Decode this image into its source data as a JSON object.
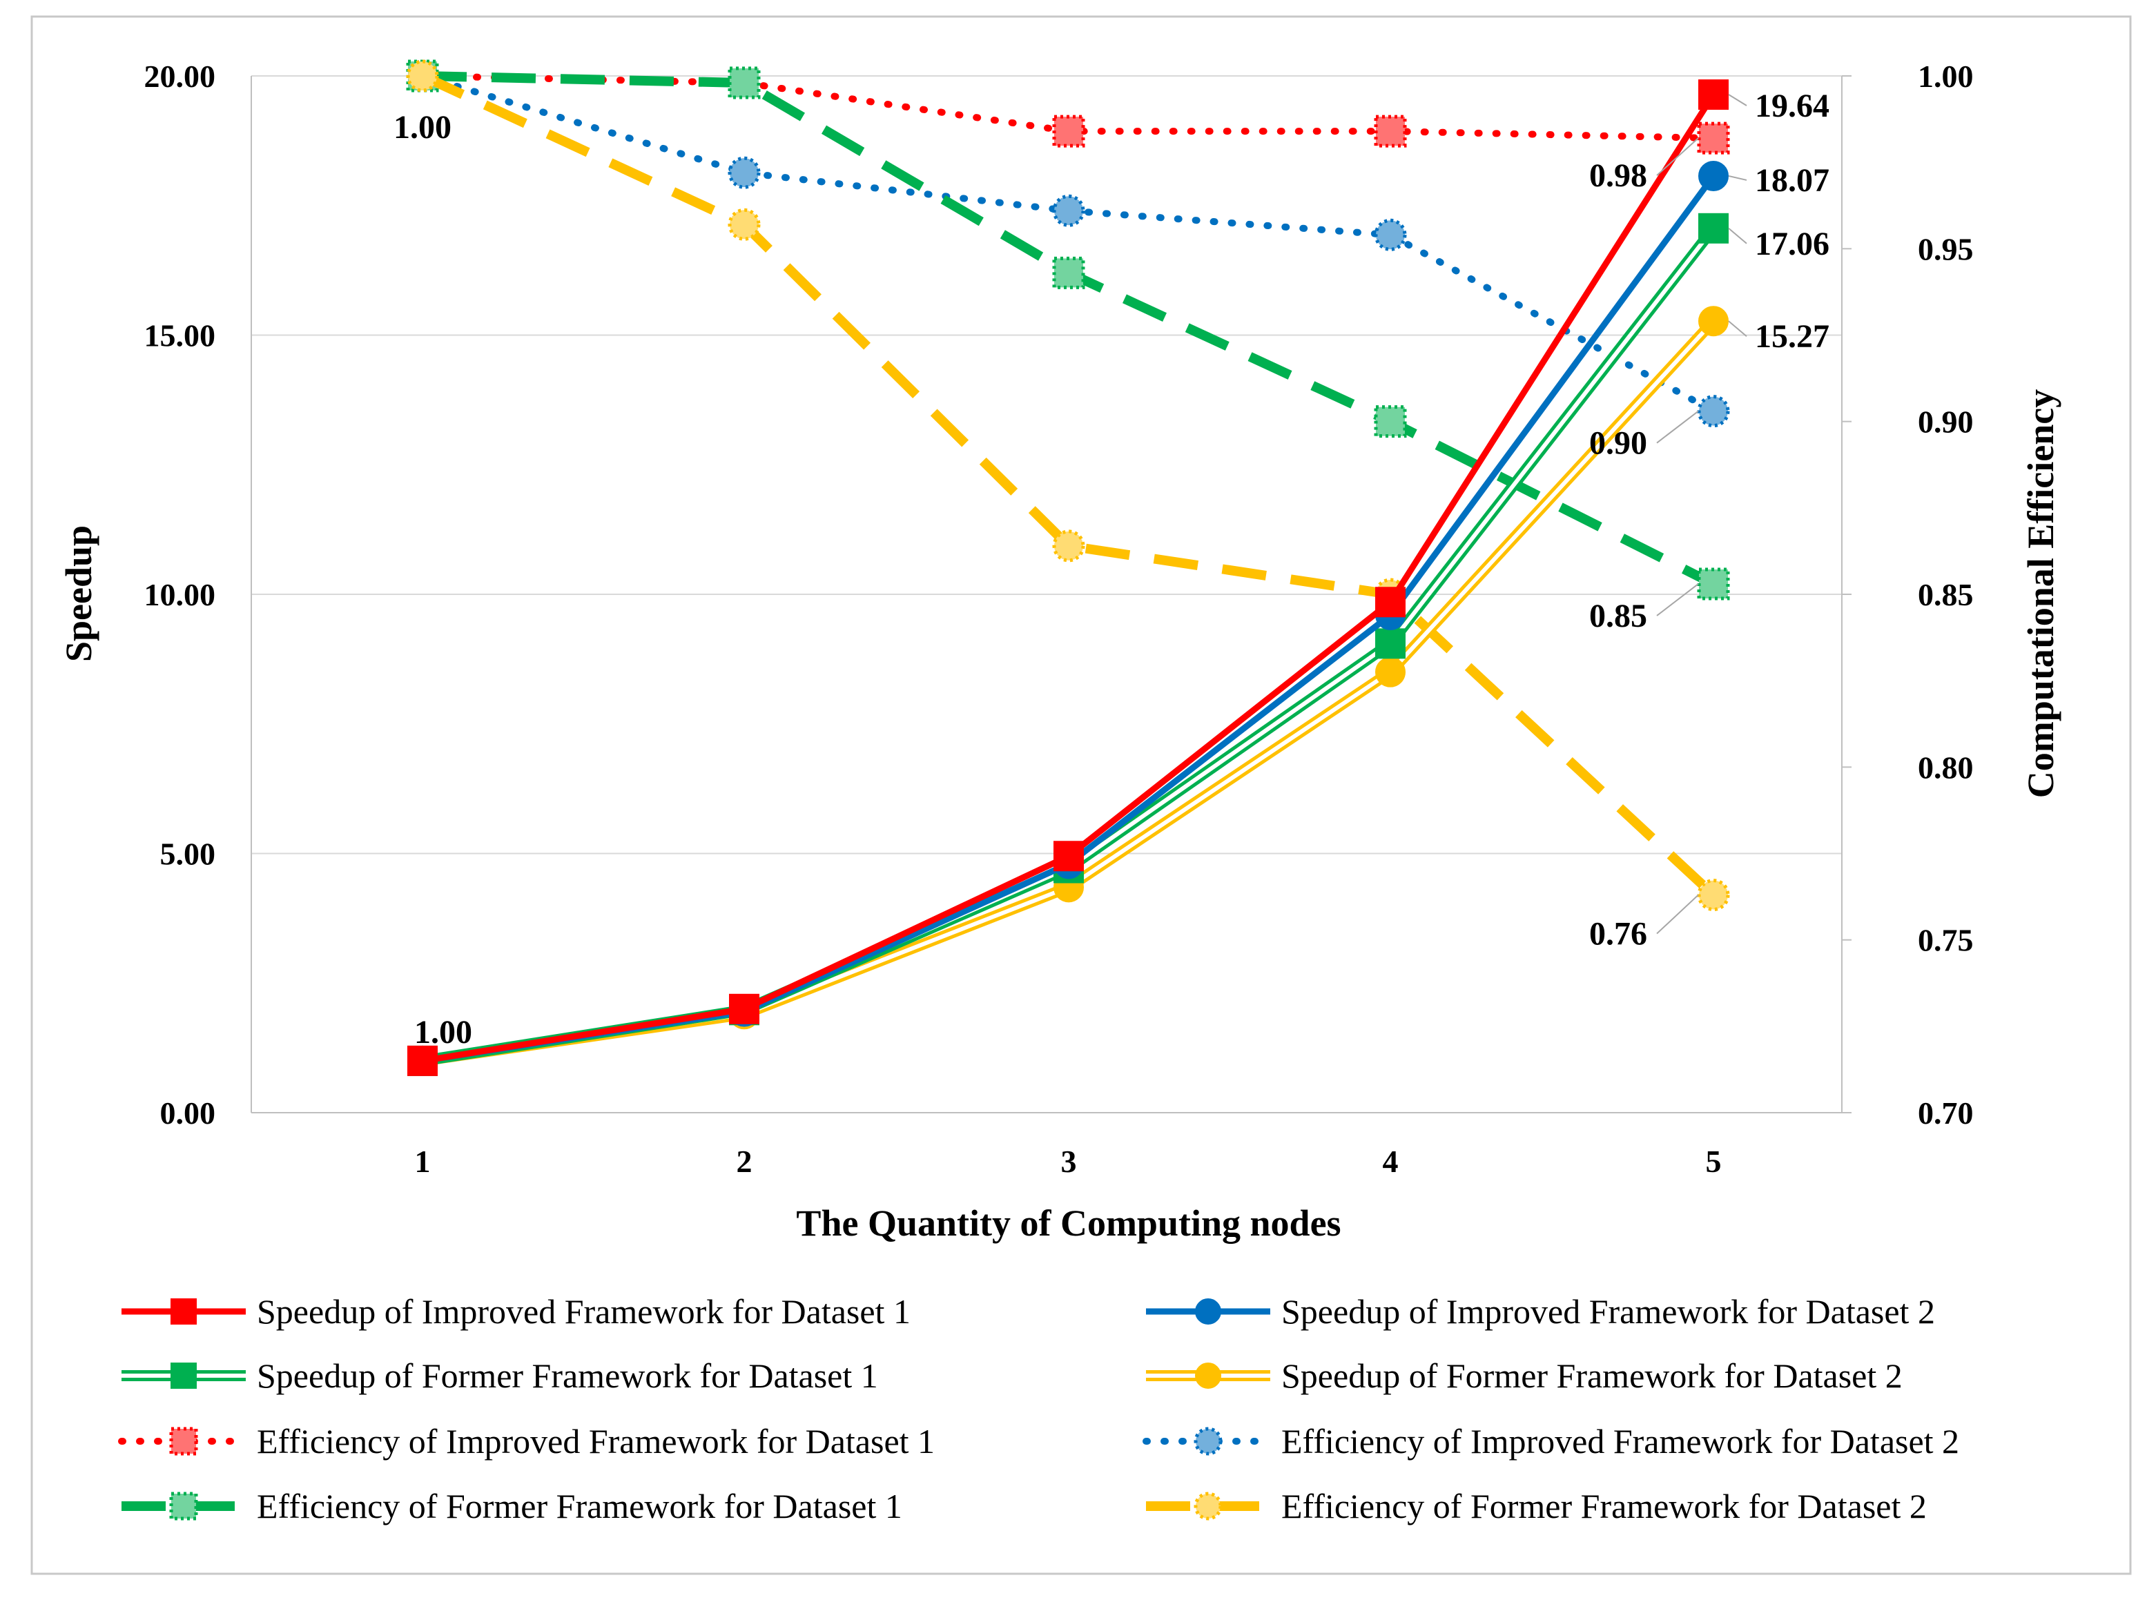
{
  "chart_data": {
    "type": "line",
    "xlabel": "The Quantity of Computing nodes",
    "ylabel": "Speedup",
    "y2label": "Computational Efficiency",
    "categories": [
      "1",
      "2",
      "3",
      "4",
      "5"
    ],
    "ylim": [
      0,
      20
    ],
    "y2lim": [
      0.7,
      1.0
    ],
    "yticks": [
      "0.00",
      "5.00",
      "10.00",
      "15.00",
      "20.00"
    ],
    "y2ticks": [
      "0.70",
      "0.75",
      "0.80",
      "0.85",
      "0.90",
      "0.95",
      "1.00"
    ],
    "grid": true,
    "legend_position": "bottom",
    "series": [
      {
        "name": "Speedup of Improved Framework for Dataset 1",
        "axis": "left",
        "values": [
          1.0,
          2.0,
          4.95,
          9.85,
          19.64
        ],
        "color": "#ff0000",
        "marker": "square",
        "style": "solid"
      },
      {
        "name": "Speedup of Improved Framework for Dataset 2",
        "axis": "left",
        "values": [
          1.0,
          1.95,
          4.8,
          9.6,
          18.07
        ],
        "color": "#0070c0",
        "marker": "circle",
        "style": "solid"
      },
      {
        "name": "Speedup of Former Framework for Dataset 1",
        "axis": "left",
        "values": [
          1.0,
          1.98,
          4.72,
          9.05,
          17.06
        ],
        "color": "#00b050",
        "marker": "square",
        "style": "double"
      },
      {
        "name": "Speedup of Former Framework for Dataset 2",
        "axis": "left",
        "values": [
          1.0,
          1.9,
          4.35,
          8.5,
          15.27
        ],
        "color": "#ffc000",
        "marker": "circle",
        "style": "double"
      },
      {
        "name": "Efficiency of Improved Framework for Dataset 1",
        "axis": "right",
        "values": [
          1.0,
          0.998,
          0.984,
          0.984,
          0.982
        ],
        "color": "#ff0000",
        "marker": "square-dotted",
        "style": "dotted"
      },
      {
        "name": "Efficiency of Improved Framework for Dataset 2",
        "axis": "right",
        "values": [
          1.0,
          0.972,
          0.961,
          0.954,
          0.903
        ],
        "color": "#0070c0",
        "marker": "circle-dotted",
        "style": "dotted"
      },
      {
        "name": "Efficiency of Former Framework for Dataset 1",
        "axis": "right",
        "values": [
          1.0,
          0.998,
          0.943,
          0.9,
          0.853
        ],
        "color": "#00b050",
        "marker": "square-dotted",
        "style": "dashed"
      },
      {
        "name": "Efficiency of Former Framework for Dataset 2",
        "axis": "right",
        "values": [
          1.0,
          0.957,
          0.864,
          0.85,
          0.763
        ],
        "color": "#ffc000",
        "marker": "circle-dotted",
        "style": "dashed"
      }
    ],
    "annotations": [
      {
        "text": "1.00",
        "series": 0,
        "index": 0
      },
      {
        "text": "1.00",
        "series": 6,
        "index": 0
      },
      {
        "text": "19.64",
        "series": 0,
        "index": 4
      },
      {
        "text": "18.07",
        "series": 1,
        "index": 4
      },
      {
        "text": "17.06",
        "series": 2,
        "index": 4
      },
      {
        "text": "15.27",
        "series": 3,
        "index": 4
      },
      {
        "text": "0.98",
        "series": 4,
        "index": 4
      },
      {
        "text": "0.90",
        "series": 5,
        "index": 4
      },
      {
        "text": "0.85",
        "series": 6,
        "index": 4
      },
      {
        "text": "0.76",
        "series": 7,
        "index": 4
      }
    ]
  }
}
